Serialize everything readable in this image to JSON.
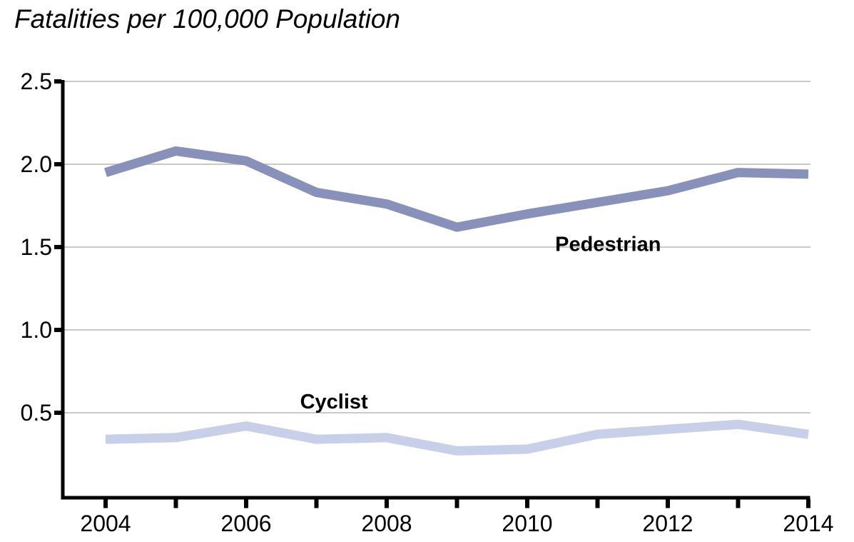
{
  "title": "Fatalities per 100,000 Population",
  "chart_data": {
    "type": "line",
    "title": "Fatalities per 100,000 Population",
    "x": [
      2004,
      2005,
      2006,
      2007,
      2008,
      2009,
      2010,
      2011,
      2012,
      2013,
      2014
    ],
    "series": [
      {
        "name": "Pedestrian",
        "color": "#8791B9",
        "line_width": 13,
        "values": [
          1.95,
          2.08,
          2.02,
          1.83,
          1.76,
          1.62,
          1.7,
          1.77,
          1.84,
          1.95,
          1.94
        ]
      },
      {
        "name": "Cyclist",
        "color": "#C7CFE9",
        "line_width": 13,
        "values": [
          0.34,
          0.35,
          0.42,
          0.34,
          0.35,
          0.27,
          0.28,
          0.37,
          0.4,
          0.43,
          0.37
        ]
      }
    ],
    "xlim": [
      2004,
      2014
    ],
    "ylim": [
      0,
      2.5
    ],
    "yticks": [
      {
        "value": 0.5,
        "label": "0.5"
      },
      {
        "value": 1.0,
        "label": "1.0"
      },
      {
        "value": 1.5,
        "label": "1.5"
      },
      {
        "value": 2.0,
        "label": "2.0"
      },
      {
        "value": 2.5,
        "label": "2.5"
      }
    ],
    "xticks": [
      2004,
      2005,
      2006,
      2007,
      2008,
      2009,
      2010,
      2011,
      2012,
      2013,
      2014
    ],
    "xtick_labels": [
      {
        "value": 2004,
        "label": "2004"
      },
      {
        "value": 2006,
        "label": "2006"
      },
      {
        "value": 2008,
        "label": "2008"
      },
      {
        "value": 2010,
        "label": "2010"
      },
      {
        "value": 2012,
        "label": "2012"
      },
      {
        "value": 2014,
        "label": "2014"
      }
    ],
    "grid": "horizontal",
    "legend_position": "inline-annotations",
    "annotations": [
      {
        "text": "Pedestrian",
        "x": 2011.15,
        "y": 1.52
      },
      {
        "text": "Cyclist",
        "x": 2007.25,
        "y": 0.57
      }
    ],
    "axis_color": "#000000",
    "grid_color": "#C8C8C8",
    "text_color": "#000000"
  }
}
